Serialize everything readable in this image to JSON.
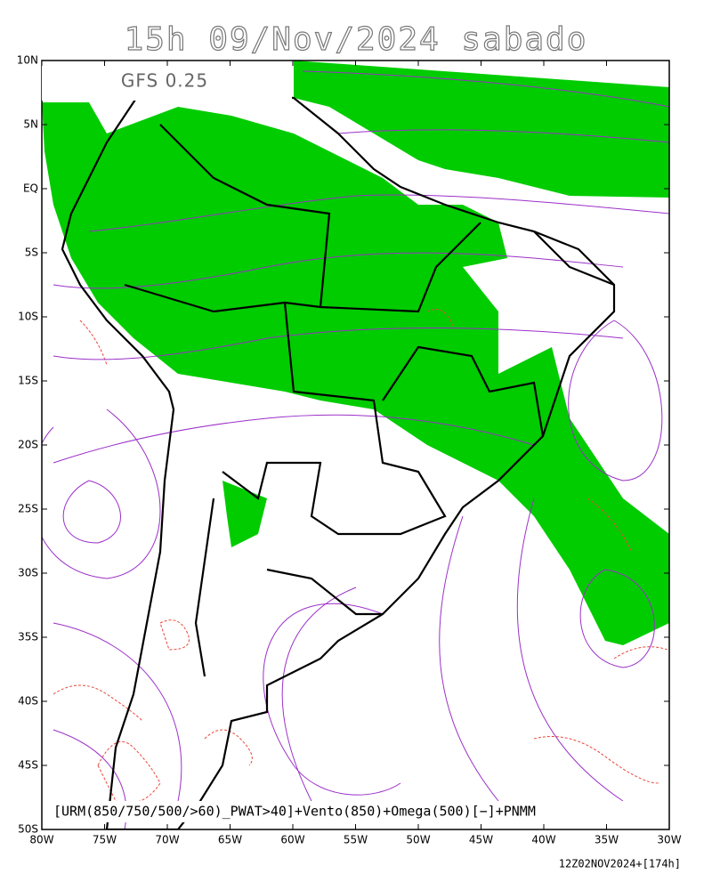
{
  "header": {
    "title": "15h 09/Nov/2024 sabado"
  },
  "model_label": "GFS 0.25",
  "map": {
    "lat_ticks": [
      "10N",
      "5N",
      "EQ",
      "5S",
      "10S",
      "15S",
      "20S",
      "25S",
      "30S",
      "35S",
      "40S",
      "45S",
      "50S"
    ],
    "lon_ticks": [
      "80W",
      "75W",
      "70W",
      "65W",
      "60W",
      "55W",
      "50W",
      "45W",
      "40W",
      "35W",
      "30W"
    ]
  },
  "caption": "[URM(850/750/500/>60)_PWAT>40]+Vento(850)+Omega(500)[−]+PNMM",
  "footer": "12Z02NOV2024+[174h]"
}
